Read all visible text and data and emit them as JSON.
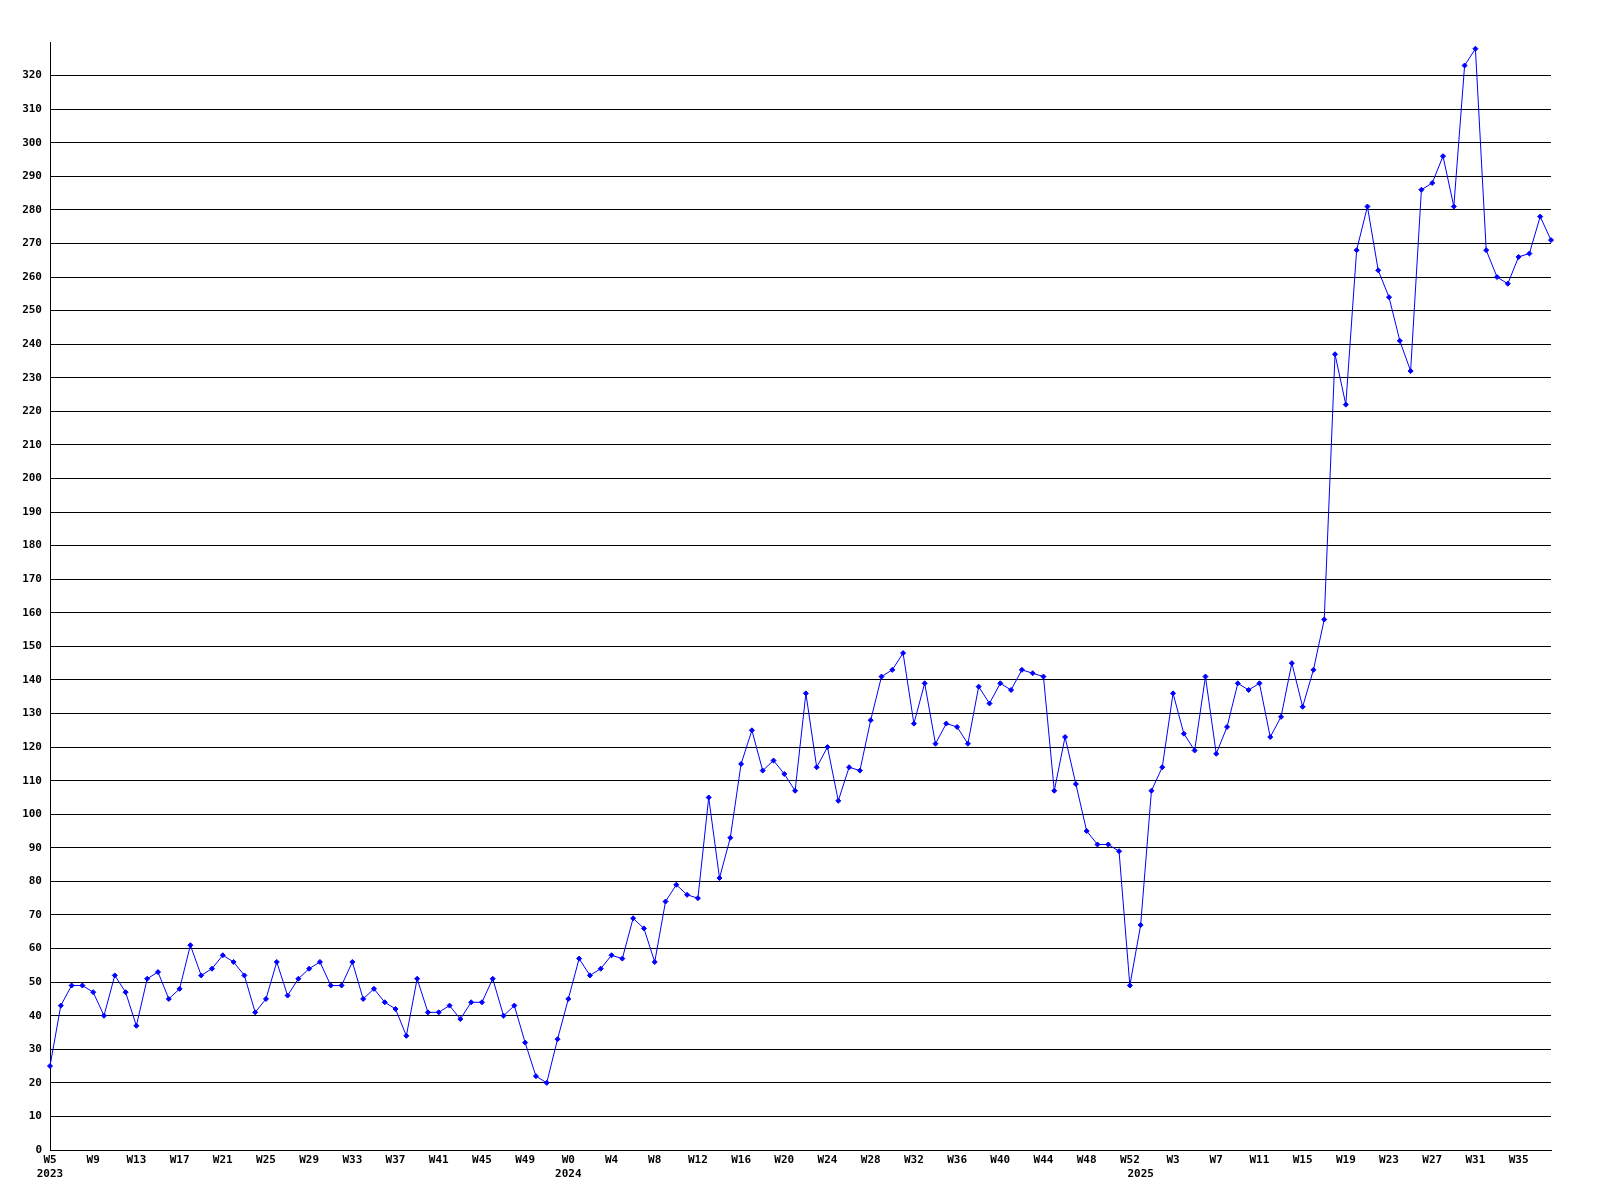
{
  "chart_data": {
    "type": "line",
    "categories": [
      "W5\n2023",
      null,
      null,
      null,
      "W9",
      null,
      null,
      null,
      "W13",
      null,
      null,
      null,
      "W17",
      null,
      null,
      null,
      "W21",
      null,
      null,
      null,
      "W25",
      null,
      null,
      null,
      "W29",
      null,
      null,
      null,
      "W33",
      null,
      null,
      null,
      "W37",
      null,
      null,
      null,
      "W41",
      null,
      null,
      null,
      "W45",
      null,
      null,
      null,
      "W49",
      null,
      null,
      null,
      "W0\n2024",
      null,
      null,
      null,
      "W4",
      null,
      null,
      null,
      "W8",
      null,
      null,
      null,
      "W12",
      null,
      null,
      null,
      "W16",
      null,
      null,
      null,
      "W20",
      null,
      null,
      null,
      "W24",
      null,
      null,
      null,
      "W28",
      null,
      null,
      null,
      "W32",
      null,
      null,
      null,
      "W36",
      null,
      null,
      null,
      "W40",
      null,
      null,
      null,
      "W44",
      null,
      null,
      null,
      "W48",
      null,
      null,
      null,
      "W52",
      "\n2025",
      null,
      null,
      "W3",
      null,
      null,
      null,
      "W7",
      null,
      null,
      null,
      "W11",
      null,
      null,
      null,
      "W15",
      null,
      null,
      null,
      "W19",
      null,
      null,
      null,
      "W23",
      null,
      null,
      null,
      "W27",
      null,
      null,
      null,
      "W31",
      null,
      null,
      null,
      "W35",
      null,
      null,
      null
    ],
    "series": [
      {
        "color": "#0000ff",
        "values": [
          25,
          43,
          49,
          49,
          47,
          40,
          52,
          47,
          37,
          51,
          53,
          45,
          48,
          61,
          52,
          54,
          58,
          56,
          52,
          41,
          45,
          56,
          46,
          51,
          54,
          56,
          49,
          49,
          56,
          45,
          48,
          44,
          42,
          34,
          51,
          41,
          41,
          43,
          39,
          44,
          44,
          51,
          40,
          43,
          32,
          22,
          20,
          33,
          45,
          57,
          52,
          54,
          58,
          57,
          69,
          66,
          56,
          74,
          79,
          76,
          75,
          105,
          81,
          93,
          115,
          125,
          113,
          116,
          112,
          107,
          136,
          114,
          120,
          104,
          114,
          113,
          128,
          141,
          143,
          148,
          127,
          139,
          121,
          127,
          126,
          121,
          138,
          133,
          139,
          137,
          143,
          142,
          141,
          107,
          123,
          109,
          95,
          91,
          91,
          89,
          49,
          67,
          107,
          114,
          136,
          124,
          119,
          141,
          118,
          126,
          139,
          137,
          139,
          123,
          129,
          145,
          132,
          143,
          158,
          237,
          222,
          268,
          281,
          262,
          254,
          241,
          232,
          286,
          288,
          296,
          281,
          323,
          328,
          268,
          260,
          258,
          266,
          267,
          278,
          271
        ]
      }
    ],
    "ylim": [
      0,
      330
    ],
    "yticks": [
      0,
      10,
      20,
      30,
      40,
      50,
      60,
      70,
      80,
      90,
      100,
      110,
      120,
      130,
      140,
      150,
      160,
      170,
      180,
      190,
      200,
      210,
      220,
      230,
      240,
      250,
      260,
      270,
      280,
      290,
      300,
      310,
      320
    ],
    "grid": "y",
    "legend": false,
    "marker": "diamond",
    "line_style": "solid"
  }
}
